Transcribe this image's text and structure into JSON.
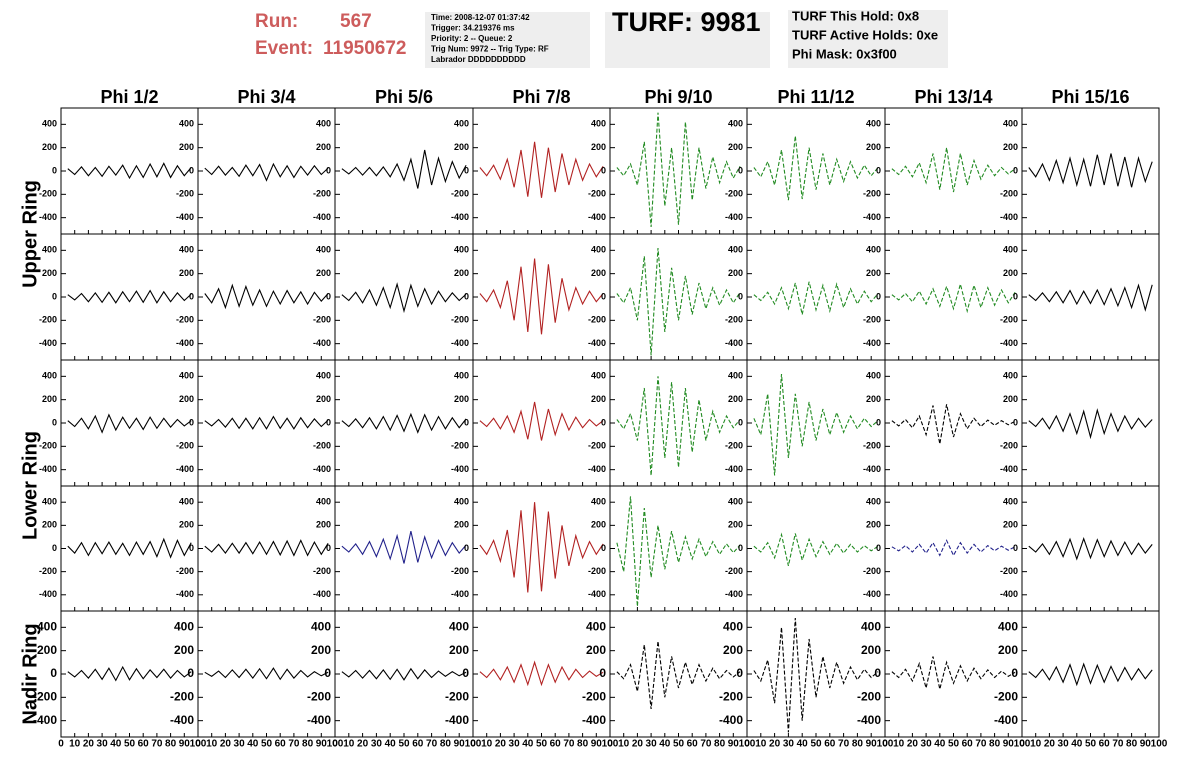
{
  "header": {
    "run_label": "Run:",
    "run": "567",
    "event_label": "Event:",
    "event": "11950672",
    "info": [
      "Time: 2008-12-07 01:37:42",
      "Trigger: 34.219376 ms",
      "Priority: 2 -- Queue: 2",
      "Trig Num: 9972 -- Trig Type: RF",
      "Labrador DDDDDDDDDD"
    ],
    "turf": "TURF: 9981",
    "turf_info": [
      "TURF This Hold: 0x8",
      "TURF Active Holds: 0xe",
      "Phi Mask: 0x3f00"
    ]
  },
  "chart_data": {
    "type": "line",
    "columns": [
      "Phi 1/2",
      "Phi 3/4",
      "Phi 5/6",
      "Phi 7/8",
      "Phi 9/10",
      "Phi 11/12",
      "Phi 13/14",
      "Phi 15/16"
    ],
    "rings": [
      "Upper Ring",
      "Lower Ring",
      "Nadir Ring"
    ],
    "xlim": [
      0,
      100
    ],
    "xticks": [
      0,
      10,
      20,
      30,
      40,
      50,
      60,
      70,
      80,
      90,
      100
    ],
    "ylim": [
      -540,
      540
    ],
    "yticks": [
      -400,
      -200,
      0,
      200,
      400
    ],
    "x": [
      5,
      10,
      15,
      20,
      25,
      30,
      35,
      40,
      45,
      50,
      55,
      60,
      65,
      70,
      75,
      80,
      85,
      90,
      95
    ],
    "panels": [
      {
        "color": "#000000",
        "dashed": false,
        "values": [
          20,
          -30,
          35,
          -40,
          30,
          -45,
          40,
          -35,
          50,
          -60,
          45,
          -55,
          60,
          -50,
          65,
          -55,
          45,
          -40,
          30
        ]
      },
      {
        "color": "#000000",
        "dashed": false,
        "values": [
          25,
          -30,
          40,
          -35,
          30,
          -45,
          50,
          -40,
          55,
          -80,
          60,
          -50,
          45,
          -55,
          40,
          -35,
          45,
          -30,
          25
        ]
      },
      {
        "color": "#000000",
        "dashed": false,
        "values": [
          20,
          -25,
          30,
          -35,
          30,
          -40,
          35,
          -50,
          60,
          -80,
          100,
          -150,
          180,
          -120,
          110,
          -90,
          80,
          -60,
          50
        ]
      },
      {
        "color": "#b22222",
        "dashed": false,
        "values": [
          30,
          -40,
          50,
          -70,
          100,
          -140,
          180,
          -220,
          250,
          -230,
          200,
          -180,
          150,
          -120,
          100,
          -80,
          60,
          -50,
          40
        ]
      },
      {
        "color": "#228b22",
        "dashed": true,
        "values": [
          30,
          -40,
          60,
          -120,
          250,
          -480,
          500,
          -300,
          200,
          -460,
          420,
          -250,
          200,
          -150,
          120,
          -100,
          80,
          -60,
          40
        ]
      },
      {
        "color": "#228b22",
        "dashed": true,
        "values": [
          30,
          -50,
          80,
          -120,
          180,
          -250,
          300,
          -240,
          200,
          -160,
          150,
          -120,
          100,
          -90,
          80,
          -60,
          50,
          -40,
          30
        ]
      },
      {
        "color": "#228b22",
        "dashed": true,
        "values": [
          20,
          -30,
          40,
          -50,
          70,
          -100,
          150,
          -160,
          200,
          -180,
          150,
          -120,
          90,
          -70,
          50,
          -40,
          30,
          -25,
          20
        ]
      },
      {
        "color": "#000000",
        "dashed": false,
        "values": [
          30,
          -50,
          60,
          -80,
          90,
          -100,
          110,
          -120,
          100,
          -130,
          140,
          -120,
          150,
          -130,
          120,
          -140,
          110,
          -90,
          80
        ]
      },
      {
        "color": "#000000",
        "dashed": false,
        "values": [
          20,
          -25,
          30,
          -40,
          35,
          -45,
          40,
          -50,
          45,
          -40,
          50,
          -45,
          55,
          -50,
          45,
          -40,
          35,
          -30,
          25
        ]
      },
      {
        "color": "#000000",
        "dashed": false,
        "values": [
          30,
          -50,
          70,
          -90,
          100,
          -80,
          90,
          -70,
          60,
          -80,
          50,
          -60,
          55,
          -50,
          45,
          -60,
          40,
          -35,
          30
        ]
      },
      {
        "color": "#000000",
        "dashed": false,
        "values": [
          20,
          -30,
          40,
          -50,
          60,
          -70,
          80,
          -90,
          110,
          -120,
          100,
          -80,
          70,
          -60,
          50,
          -40,
          35,
          -30,
          25
        ]
      },
      {
        "color": "#b22222",
        "dashed": false,
        "values": [
          30,
          -40,
          60,
          -90,
          140,
          -200,
          260,
          -300,
          330,
          -320,
          280,
          -220,
          160,
          -110,
          80,
          -60,
          50,
          -40,
          30
        ]
      },
      {
        "color": "#228b22",
        "dashed": true,
        "values": [
          30,
          -50,
          80,
          -200,
          350,
          -500,
          420,
          -300,
          250,
          -200,
          180,
          -150,
          120,
          -100,
          80,
          -70,
          60,
          -50,
          40
        ]
      },
      {
        "color": "#228b22",
        "dashed": true,
        "values": [
          20,
          -30,
          40,
          -60,
          80,
          -100,
          120,
          -150,
          130,
          -110,
          100,
          -120,
          110,
          -90,
          70,
          -60,
          50,
          -40,
          30
        ]
      },
      {
        "color": "#228b22",
        "dashed": true,
        "values": [
          20,
          -25,
          30,
          -40,
          50,
          -60,
          70,
          -80,
          90,
          -100,
          110,
          -120,
          100,
          -90,
          80,
          -70,
          60,
          -50,
          40
        ]
      },
      {
        "color": "#000000",
        "dashed": false,
        "values": [
          20,
          -30,
          35,
          -40,
          45,
          -50,
          55,
          -60,
          50,
          -55,
          60,
          -65,
          70,
          -75,
          80,
          -90,
          100,
          -110,
          105
        ]
      },
      {
        "color": "#000000",
        "dashed": false,
        "values": [
          20,
          -30,
          40,
          -50,
          60,
          -80,
          70,
          -60,
          50,
          -45,
          40,
          -55,
          50,
          -45,
          40,
          -35,
          30,
          -25,
          20
        ]
      },
      {
        "color": "#000000",
        "dashed": false,
        "values": [
          20,
          -25,
          30,
          -35,
          40,
          -45,
          40,
          -50,
          45,
          -50,
          55,
          -45,
          40,
          -50,
          45,
          -40,
          35,
          -30,
          25
        ]
      },
      {
        "color": "#000000",
        "dashed": false,
        "values": [
          20,
          -30,
          35,
          -40,
          45,
          -50,
          55,
          -60,
          65,
          -70,
          75,
          -80,
          70,
          -60,
          55,
          -50,
          45,
          -40,
          35
        ]
      },
      {
        "color": "#b22222",
        "dashed": false,
        "values": [
          20,
          -30,
          40,
          -50,
          60,
          -80,
          100,
          -140,
          180,
          -150,
          120,
          -100,
          80,
          -60,
          50,
          -40,
          30,
          -25,
          20
        ]
      },
      {
        "color": "#228b22",
        "dashed": true,
        "values": [
          30,
          -50,
          80,
          -150,
          300,
          -450,
          400,
          -300,
          350,
          -380,
          300,
          -250,
          200,
          -150,
          100,
          -80,
          60,
          -40,
          30
        ]
      },
      {
        "color": "#228b22",
        "dashed": true,
        "values": [
          40,
          -100,
          250,
          -450,
          420,
          -300,
          250,
          -200,
          180,
          -150,
          120,
          -100,
          90,
          -80,
          60,
          -50,
          40,
          -30,
          20
        ]
      },
      {
        "color": "#000000",
        "dashed": true,
        "values": [
          20,
          -25,
          30,
          -40,
          60,
          -100,
          150,
          -180,
          160,
          -120,
          80,
          -50,
          40,
          -30,
          25,
          -20,
          20,
          -15,
          15
        ]
      },
      {
        "color": "#000000",
        "dashed": false,
        "values": [
          20,
          -30,
          40,
          -50,
          60,
          -70,
          80,
          -90,
          100,
          -120,
          110,
          -90,
          80,
          -70,
          60,
          -50,
          40,
          -35,
          30
        ]
      },
      {
        "color": "#000000",
        "dashed": false,
        "values": [
          20,
          -40,
          50,
          -60,
          50,
          -45,
          55,
          -50,
          45,
          -60,
          55,
          -50,
          60,
          -70,
          80,
          -75,
          70,
          -60,
          50
        ]
      },
      {
        "color": "#000000",
        "dashed": false,
        "values": [
          20,
          -30,
          35,
          -40,
          45,
          -40,
          50,
          -45,
          55,
          -50,
          60,
          -55,
          65,
          -60,
          70,
          -60,
          55,
          -50,
          45
        ]
      },
      {
        "color": "#22228b",
        "dashed": false,
        "values": [
          20,
          -30,
          40,
          -50,
          60,
          -70,
          80,
          -90,
          110,
          -130,
          150,
          -120,
          100,
          -80,
          70,
          -60,
          50,
          -40,
          30
        ]
      },
      {
        "color": "#b22222",
        "dashed": false,
        "values": [
          30,
          -50,
          70,
          -110,
          160,
          -250,
          330,
          -380,
          400,
          -370,
          320,
          -260,
          200,
          -150,
          110,
          -80,
          60,
          -50,
          40
        ]
      },
      {
        "color": "#228b22",
        "dashed": true,
        "values": [
          50,
          -200,
          450,
          -500,
          350,
          -250,
          200,
          -180,
          150,
          -120,
          100,
          -90,
          80,
          -70,
          60,
          -50,
          40,
          -35,
          30
        ]
      },
      {
        "color": "#228b22",
        "dashed": true,
        "values": [
          20,
          -30,
          50,
          -80,
          120,
          -150,
          130,
          -100,
          80,
          -70,
          60,
          -50,
          45,
          -40,
          35,
          -30,
          25,
          -20,
          20
        ]
      },
      {
        "color": "#22228b",
        "dashed": true,
        "values": [
          15,
          -20,
          25,
          -30,
          35,
          -40,
          50,
          -60,
          70,
          -60,
          50,
          -40,
          35,
          -30,
          25,
          -20,
          20,
          -15,
          15
        ]
      },
      {
        "color": "#000000",
        "dashed": false,
        "values": [
          20,
          -30,
          40,
          -50,
          60,
          -70,
          80,
          -90,
          85,
          -80,
          75,
          -70,
          65,
          -60,
          55,
          -50,
          45,
          -40,
          35
        ]
      },
      {
        "color": "#000000",
        "dashed": false,
        "values": [
          20,
          -25,
          30,
          -35,
          40,
          -45,
          50,
          -55,
          60,
          -50,
          45,
          -40,
          35,
          -30,
          40,
          -35,
          30,
          -25,
          20
        ]
      },
      {
        "color": "#000000",
        "dashed": false,
        "values": [
          15,
          -20,
          25,
          -30,
          35,
          -30,
          40,
          -35,
          45,
          -40,
          50,
          -45,
          40,
          -35,
          30,
          -25,
          20,
          -15,
          15
        ]
      },
      {
        "color": "#000000",
        "dashed": false,
        "values": [
          20,
          -25,
          30,
          -35,
          30,
          -40,
          35,
          -45,
          40,
          -50,
          45,
          -40,
          35,
          -30,
          25,
          -20,
          20,
          -15,
          15
        ]
      },
      {
        "color": "#b22222",
        "dashed": false,
        "values": [
          20,
          -30,
          40,
          -50,
          60,
          -70,
          80,
          -90,
          100,
          -90,
          80,
          -70,
          60,
          -50,
          40,
          -30,
          25,
          -20,
          15
        ]
      },
      {
        "color": "#000000",
        "dashed": true,
        "values": [
          20,
          -40,
          80,
          -150,
          250,
          -300,
          280,
          -200,
          150,
          -120,
          100,
          -90,
          80,
          -60,
          50,
          -40,
          30,
          -25,
          20
        ]
      },
      {
        "color": "#000000",
        "dashed": true,
        "values": [
          30,
          -60,
          120,
          -250,
          400,
          -500,
          480,
          -400,
          300,
          -200,
          150,
          -120,
          100,
          -80,
          60,
          -50,
          40,
          -30,
          20
        ]
      },
      {
        "color": "#000000",
        "dashed": true,
        "values": [
          20,
          -30,
          40,
          -60,
          90,
          -120,
          150,
          -130,
          100,
          -80,
          70,
          -60,
          50,
          -40,
          35,
          -30,
          25,
          -20,
          15
        ]
      },
      {
        "color": "#000000",
        "dashed": false,
        "values": [
          20,
          -30,
          40,
          -50,
          60,
          -70,
          80,
          -90,
          85,
          -80,
          75,
          -70,
          65,
          -60,
          55,
          -50,
          45,
          -40,
          35
        ]
      }
    ]
  }
}
